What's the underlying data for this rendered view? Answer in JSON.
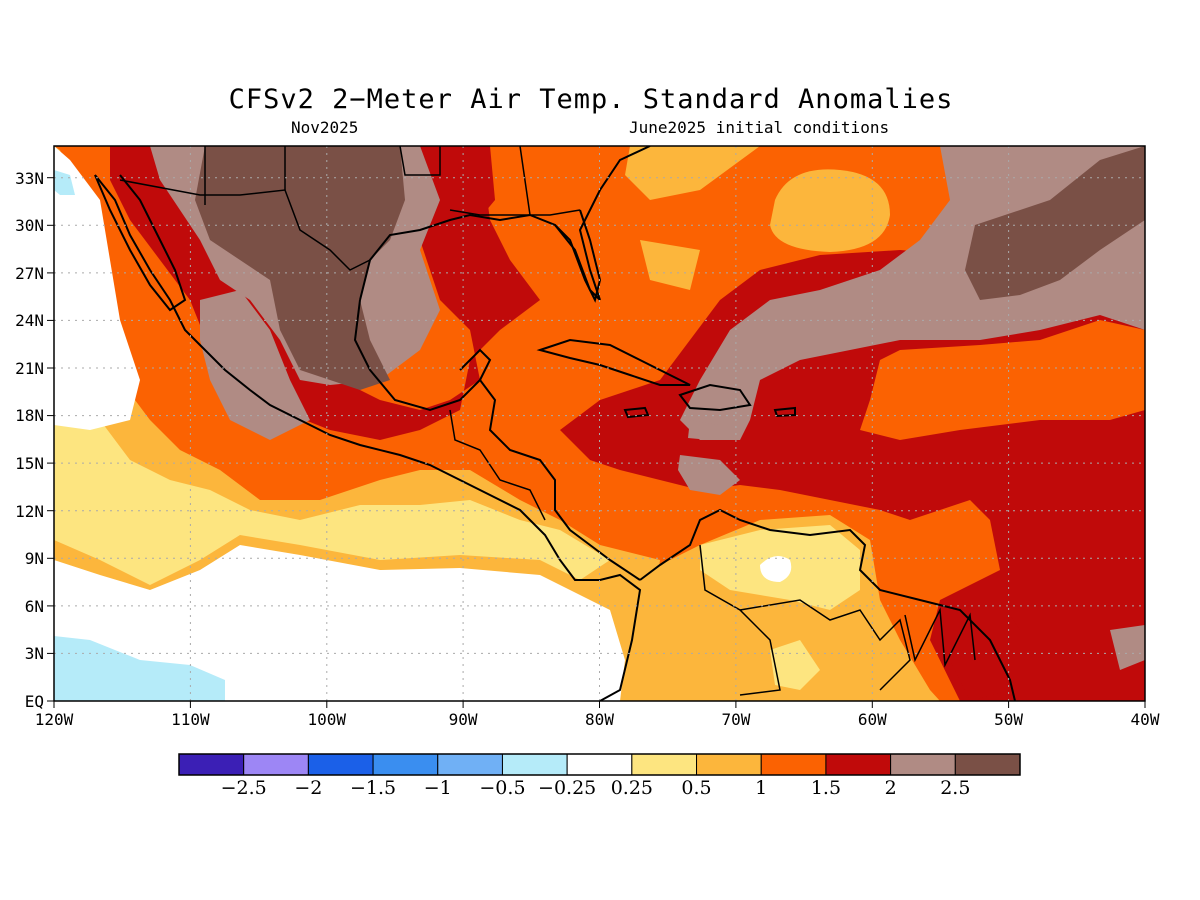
{
  "title": "CFSv2 2−Meter Air Temp. Standard Anomalies",
  "subtitle_left": "Nov2025",
  "subtitle_right": "June2025 initial conditions",
  "x_ticks": [
    "120W",
    "110W",
    "100W",
    "90W",
    "80W",
    "70W",
    "60W",
    "50W",
    "40W"
  ],
  "y_ticks": [
    "EQ",
    "3N",
    "6N",
    "9N",
    "12N",
    "15N",
    "18N",
    "21N",
    "24N",
    "27N",
    "30N",
    "33N"
  ],
  "colorbar": {
    "colors": [
      "#3b1fb5",
      "#9d86f5",
      "#1b60e8",
      "#3a8ef0",
      "#70b0f5",
      "#b5ebf9",
      "#ffffff",
      "#fde580",
      "#fcb63c",
      "#fb6202",
      "#c00a0a",
      "#b08b84",
      "#7a5046"
    ],
    "labels": [
      "−2.5",
      "−2",
      "−1.5",
      "−1",
      "−0.5",
      "−0.25",
      "0.25",
      "0.5",
      "1",
      "1.5",
      "2",
      "2.5"
    ]
  },
  "map": {
    "lon_range": [
      -120,
      -40
    ],
    "lat_range": [
      0,
      35
    ],
    "grid": true,
    "colors": {
      "white": "#ffffff",
      "cyan": "#b5ebf9",
      "lightyellow": "#fde580",
      "yellow": "#fcb63c",
      "orange": "#fb6202",
      "red": "#c00a0a",
      "taupe": "#b08b84",
      "brown": "#7a5046"
    }
  }
}
